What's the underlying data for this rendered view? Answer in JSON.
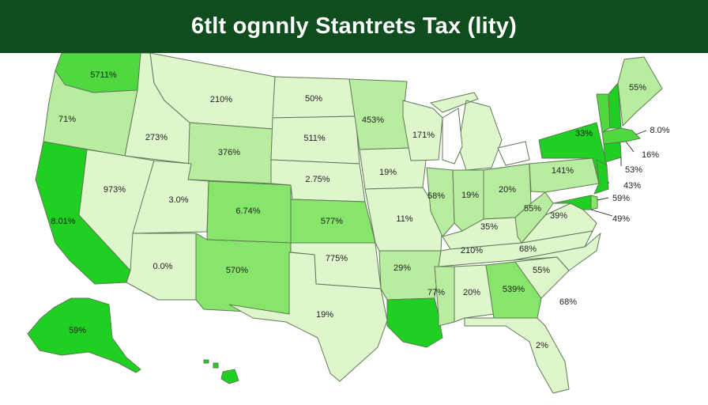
{
  "title": "6tlt ognnly Stantrets Tax (lity)",
  "colors": {
    "title_bg": "#0f4d1f",
    "title_text": "#ffffff",
    "shade_light": "#dff5cc",
    "shade_mid_light": "#b8eda0",
    "shade_mid": "#86e56a",
    "shade_strong": "#4fd83f",
    "shade_max": "#1fcf22",
    "border": "#5f7a55"
  },
  "states": [
    {
      "id": "WA",
      "label": "5711%",
      "shade": "shade_strong"
    },
    {
      "id": "OR",
      "label": "71%",
      "shade": "shade_mid_light"
    },
    {
      "id": "CA",
      "label": "8.01%",
      "shade": "shade_max"
    },
    {
      "id": "ID",
      "label": "273%",
      "shade": "shade_light"
    },
    {
      "id": "NV",
      "label": "973%",
      "shade": "shade_light"
    },
    {
      "id": "MT",
      "label": "210%",
      "shade": "shade_light"
    },
    {
      "id": "WY",
      "label": "376%",
      "shade": "shade_mid_light"
    },
    {
      "id": "UT",
      "label": "3.0%",
      "shade": "shade_light"
    },
    {
      "id": "AZ",
      "label": "0.0%",
      "shade": "shade_light"
    },
    {
      "id": "CO",
      "label": "6.74%",
      "shade": "shade_mid"
    },
    {
      "id": "NM",
      "label": "570%",
      "shade": "shade_mid"
    },
    {
      "id": "ND",
      "label": "50%",
      "shade": "shade_light"
    },
    {
      "id": "SD",
      "label": "511%",
      "shade": "shade_light"
    },
    {
      "id": "NE",
      "label": "2.75%",
      "shade": "shade_light"
    },
    {
      "id": "KS",
      "label": "577%",
      "shade": "shade_mid"
    },
    {
      "id": "OK",
      "label": "775%",
      "shade": "shade_light"
    },
    {
      "id": "TX",
      "label": "19%",
      "shade": "shade_light"
    },
    {
      "id": "MN",
      "label": "453%",
      "shade": "shade_mid_light"
    },
    {
      "id": "IA",
      "label": "19%",
      "shade": "shade_light"
    },
    {
      "id": "MO",
      "label": "11%",
      "shade": "shade_light"
    },
    {
      "id": "AR",
      "label": "29%",
      "shade": "shade_mid_light"
    },
    {
      "id": "LA",
      "label": "",
      "shade": "shade_max"
    },
    {
      "id": "WI",
      "label": "171%",
      "shade": "shade_light"
    },
    {
      "id": "IL",
      "label": "58%",
      "shade": "shade_mid_light"
    },
    {
      "id": "IN",
      "label": "19%",
      "shade": "shade_mid_light"
    },
    {
      "id": "MI",
      "label": "",
      "shade": "shade_light"
    },
    {
      "id": "OH",
      "label": "20%",
      "shade": "shade_mid_light"
    },
    {
      "id": "KY",
      "label": "35%",
      "shade": "shade_light"
    },
    {
      "id": "TN",
      "label": "210%",
      "shade": "shade_light"
    },
    {
      "id": "MS",
      "label": "77%",
      "shade": "shade_mid_light"
    },
    {
      "id": "AL",
      "label": "20%",
      "shade": "shade_light"
    },
    {
      "id": "GA",
      "label": "539%",
      "shade": "shade_mid"
    },
    {
      "id": "FL",
      "label": "2%",
      "shade": "shade_light"
    },
    {
      "id": "SC",
      "label": "55%",
      "shade": "shade_light"
    },
    {
      "id": "NC",
      "label": "68%",
      "shade": "shade_light"
    },
    {
      "id": "VA",
      "label": "39%",
      "shade": "shade_light"
    },
    {
      "id": "WV",
      "label": "55%",
      "shade": "shade_mid_light"
    },
    {
      "id": "PA",
      "label": "141%",
      "shade": "shade_mid_light"
    },
    {
      "id": "NY",
      "label": "33%",
      "shade": "shade_max"
    },
    {
      "id": "VT",
      "label": "",
      "shade": "shade_strong"
    },
    {
      "id": "NH",
      "label": "",
      "shade": "shade_max"
    },
    {
      "id": "ME",
      "label": "55%",
      "shade": "shade_mid_light"
    },
    {
      "id": "MA",
      "label": "",
      "shade": "shade_strong"
    },
    {
      "id": "CT",
      "label": "",
      "shade": "shade_max"
    },
    {
      "id": "NJ",
      "label": "",
      "shade": "shade_max"
    },
    {
      "id": "DE",
      "label": "",
      "shade": "shade_mid"
    },
    {
      "id": "MD",
      "label": "",
      "shade": "shade_max"
    },
    {
      "id": "AK",
      "label": "59%",
      "shade": "shade_max"
    },
    {
      "id": "HI",
      "label": "",
      "shade": "shade_max"
    }
  ],
  "callouts": [
    {
      "id": "RI",
      "label": "8.0%"
    },
    {
      "id": "MA",
      "label": "16%"
    },
    {
      "id": "CT",
      "label": "53%"
    },
    {
      "id": "NJ",
      "label": "43%"
    },
    {
      "id": "DE",
      "label": "59%"
    },
    {
      "id": "MD",
      "label": "49%"
    }
  ],
  "offshore_label": "68%"
}
